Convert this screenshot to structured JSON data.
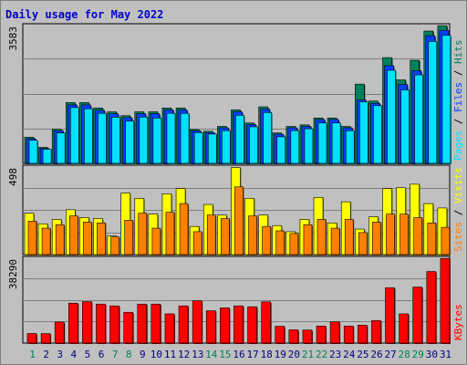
{
  "title": "Daily usage for May 2022",
  "colors": {
    "hits": "#00805c",
    "files": "#0040ff",
    "pages": "#00e0ff",
    "visits": "#ffff00",
    "sites": "#ff8000",
    "kbytes": "#ff0000",
    "weekday_tick": "#000080",
    "weekend_tick": "#00805c"
  },
  "chart_data": [
    {
      "type": "bar",
      "categories": [
        "1",
        "2",
        "3",
        "4",
        "5",
        "6",
        "7",
        "8",
        "9",
        "10",
        "11",
        "12",
        "13",
        "14",
        "15",
        "16",
        "17",
        "18",
        "19",
        "20",
        "21",
        "22",
        "23",
        "24",
        "25",
        "26",
        "27",
        "28",
        "29",
        "30",
        "31"
      ],
      "weekend_days": [
        "1",
        "7",
        "8",
        "14",
        "15",
        "21",
        "22",
        "28",
        "29"
      ],
      "ymax_label": "3583",
      "ylim": [
        0,
        3583
      ],
      "legend": [
        "Pages",
        "Files",
        "Hits"
      ],
      "series": [
        {
          "name": "Hits",
          "values": [
            680,
            415,
            885,
            1580,
            1580,
            1440,
            1340,
            1240,
            1340,
            1340,
            1440,
            1440,
            880,
            835,
            960,
            1390,
            1050,
            1470,
            790,
            960,
            1000,
            1180,
            1180,
            960,
            2060,
            1620,
            2750,
            2170,
            2680,
            3440,
            3580
          ]
        },
        {
          "name": "Files",
          "values": [
            640,
            385,
            850,
            1520,
            1520,
            1380,
            1290,
            1190,
            1290,
            1290,
            1390,
            1390,
            845,
            800,
            925,
            1340,
            1010,
            1410,
            760,
            925,
            960,
            1140,
            1140,
            925,
            1650,
            1560,
            2540,
            2050,
            2410,
            3320,
            3460
          ]
        },
        {
          "name": "Pages",
          "values": [
            600,
            365,
            790,
            1450,
            1420,
            1300,
            1200,
            1100,
            1200,
            1180,
            1300,
            1300,
            800,
            760,
            850,
            1250,
            950,
            1320,
            690,
            850,
            900,
            1050,
            1050,
            850,
            1600,
            1500,
            2420,
            1910,
            2300,
            3170,
            3330
          ]
        }
      ]
    },
    {
      "type": "bar",
      "categories": [
        "1",
        "2",
        "3",
        "4",
        "5",
        "6",
        "7",
        "8",
        "9",
        "10",
        "11",
        "12",
        "13",
        "14",
        "15",
        "16",
        "17",
        "18",
        "19",
        "20",
        "21",
        "22",
        "23",
        "24",
        "25",
        "26",
        "27",
        "28",
        "29",
        "30",
        "31"
      ],
      "ymax_label": "498",
      "ylim": [
        0,
        498
      ],
      "legend": [
        "Sites",
        "Visits"
      ],
      "series": [
        {
          "name": "Visits",
          "values": [
            235,
            175,
            200,
            255,
            210,
            205,
            105,
            350,
            320,
            230,
            345,
            375,
            160,
            285,
            225,
            495,
            320,
            225,
            165,
            130,
            200,
            325,
            180,
            300,
            145,
            215,
            375,
            380,
            400,
            290,
            265
          ]
        },
        {
          "name": "Sites",
          "values": [
            190,
            150,
            170,
            220,
            185,
            180,
            100,
            195,
            235,
            150,
            240,
            290,
            130,
            225,
            205,
            385,
            220,
            160,
            135,
            120,
            170,
            200,
            150,
            200,
            125,
            185,
            230,
            230,
            210,
            180,
            155
          ]
        }
      ]
    },
    {
      "type": "bar",
      "categories": [
        "1",
        "2",
        "3",
        "4",
        "5",
        "6",
        "7",
        "8",
        "9",
        "10",
        "11",
        "12",
        "13",
        "14",
        "15",
        "16",
        "17",
        "18",
        "19",
        "20",
        "21",
        "22",
        "23",
        "24",
        "25",
        "26",
        "27",
        "28",
        "29",
        "30",
        "31"
      ],
      "ymax_label": "38290",
      "ylim": [
        0,
        38290
      ],
      "legend": [
        "KBytes"
      ],
      "series": [
        {
          "name": "KBytes",
          "values": [
            4300,
            4300,
            9500,
            18000,
            18700,
            17600,
            16800,
            13900,
            17600,
            17600,
            13200,
            16800,
            19100,
            14600,
            15900,
            16800,
            16400,
            18600,
            7600,
            6000,
            5900,
            7700,
            9600,
            7700,
            8100,
            10200,
            25000,
            13200,
            25300,
            32300,
            38200
          ]
        }
      ]
    }
  ]
}
